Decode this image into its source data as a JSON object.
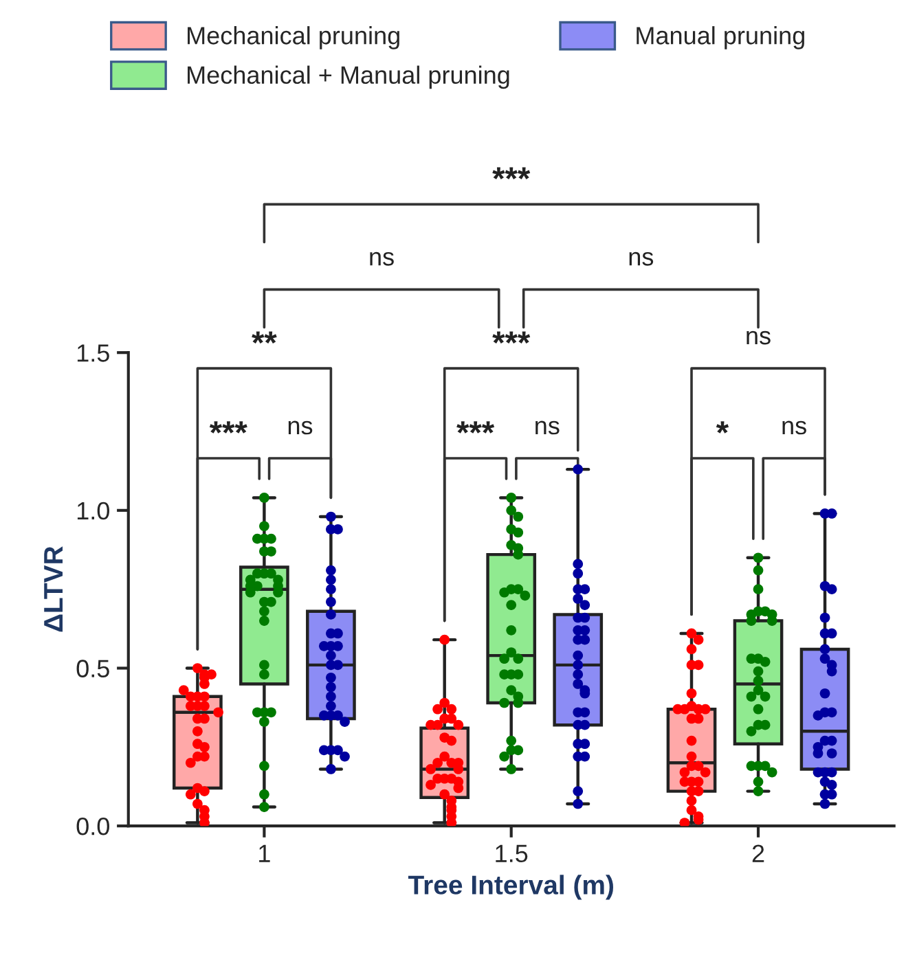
{
  "chart_data": {
    "type": "box",
    "categories": [
      "1",
      "1.5",
      "2"
    ],
    "xlabel": "Tree Interval (m)",
    "ylabel": "ΔLTVR",
    "ylim": [
      0,
      1.5
    ],
    "yticks": [
      {
        "value": 0,
        "label": "0.0"
      },
      {
        "value": 0.5,
        "label": "0.5"
      },
      {
        "value": 1,
        "label": "1.0"
      },
      {
        "value": 1.5,
        "label": "1.5"
      }
    ],
    "legend": "top",
    "marker": "circle",
    "series": [
      {
        "name": "Mechanical pruning",
        "color": "#ffa8a8",
        "boxes": [
          {
            "low": 0.01,
            "q1": 0.12,
            "median": 0.36,
            "q3": 0.41,
            "high": 0.5
          },
          {
            "low": 0.01,
            "q1": 0.09,
            "median": 0.18,
            "q3": 0.31,
            "high": 0.59
          },
          {
            "low": 0.01,
            "q1": 0.11,
            "median": 0.2,
            "q3": 0.37,
            "high": 0.61
          }
        ]
      },
      {
        "name": "Mechanical + Manual pruning",
        "color": "#90ea90",
        "boxes": [
          {
            "low": 0.06,
            "q1": 0.45,
            "median": 0.75,
            "q3": 0.82,
            "high": 1.04
          },
          {
            "low": 0.18,
            "q1": 0.39,
            "median": 0.54,
            "q3": 0.86,
            "high": 1.04
          },
          {
            "low": 0.11,
            "q1": 0.26,
            "median": 0.45,
            "q3": 0.65,
            "high": 0.85
          }
        ]
      },
      {
        "name": "Manual pruning",
        "color": "#8c8cf5",
        "boxes": [
          {
            "low": 0.18,
            "q1": 0.34,
            "median": 0.51,
            "q3": 0.68,
            "high": 0.98
          },
          {
            "low": 0.07,
            "q1": 0.32,
            "median": 0.51,
            "q3": 0.67,
            "high": 1.13
          },
          {
            "low": 0.07,
            "q1": 0.18,
            "median": 0.3,
            "q3": 0.56,
            "high": 0.99
          }
        ]
      },
      {
        "type": "scatter",
        "color": "#ff0000",
        "x": [
          "1",
          "1",
          "1",
          "1",
          "1",
          "1",
          "1",
          "1",
          "1",
          "1",
          "1",
          "1",
          "1",
          "1",
          "1",
          "1",
          "1",
          "1",
          "1",
          "1",
          "1",
          "1",
          "1",
          "1",
          "1",
          "1",
          "1",
          "1",
          "1.5",
          "1.5",
          "1.5",
          "1.5",
          "1.5",
          "1.5",
          "1.5",
          "1.5",
          "1.5",
          "1.5",
          "1.5",
          "1.5",
          "1.5",
          "1.5",
          "1.5",
          "1.5",
          "1.5",
          "1.5",
          "1.5",
          "1.5",
          "1.5",
          "1.5",
          "1.5",
          "1.5",
          "1.5",
          "1.5",
          "1.5",
          "1.5",
          "1.5",
          "2",
          "2",
          "2",
          "2",
          "2",
          "2",
          "2",
          "2",
          "2",
          "2",
          "2",
          "2",
          "2",
          "2",
          "2",
          "2",
          "2",
          "2",
          "2",
          "2",
          "2",
          "2",
          "2",
          "2",
          "2",
          "2",
          "2",
          "2",
          "2"
        ],
        "values": [
          0.5,
          0.48,
          0.47,
          0.48,
          0.41,
          0.41,
          0.41,
          0.38,
          0.38,
          0.38,
          0.34,
          0.34,
          0.26,
          0.25,
          0.22,
          0.22,
          0.2,
          0.12,
          0.11,
          0.1,
          0.07,
          0.05,
          0.03,
          0.01,
          0.36,
          0.3,
          0.45,
          0.43,
          0.59,
          0.39,
          0.37,
          0.37,
          0.34,
          0.34,
          0.32,
          0.32,
          0.32,
          0.28,
          0.27,
          0.22,
          0.2,
          0.2,
          0.2,
          0.18,
          0.18,
          0.15,
          0.15,
          0.15,
          0.14,
          0.13,
          0.1,
          0.08,
          0.06,
          0.05,
          0.03,
          0.01,
          0.12,
          0.61,
          0.59,
          0.56,
          0.51,
          0.51,
          0.42,
          0.38,
          0.37,
          0.37,
          0.37,
          0.37,
          0.34,
          0.34,
          0.27,
          0.22,
          0.19,
          0.19,
          0.17,
          0.17,
          0.14,
          0.14,
          0.14,
          0.11,
          0.11,
          0.08,
          0.05,
          0.03,
          0.02,
          0.01
        ]
      },
      {
        "type": "scatter",
        "color": "#007a00",
        "x": [
          "1",
          "1",
          "1",
          "1",
          "1",
          "1",
          "1",
          "1",
          "1",
          "1",
          "1",
          "1",
          "1",
          "1",
          "1",
          "1",
          "1",
          "1",
          "1",
          "1",
          "1",
          "1",
          "1",
          "1",
          "1",
          "1",
          "1",
          "1",
          "1",
          "1",
          "1.5",
          "1.5",
          "1.5",
          "1.5",
          "1.5",
          "1.5",
          "1.5",
          "1.5",
          "1.5",
          "1.5",
          "1.5",
          "1.5",
          "1.5",
          "1.5",
          "1.5",
          "1.5",
          "1.5",
          "1.5",
          "1.5",
          "1.5",
          "1.5",
          "1.5",
          "1.5",
          "1.5",
          "1.5",
          "1.5",
          "1.5",
          "1.5",
          "1.5",
          "2",
          "2",
          "2",
          "2",
          "2",
          "2",
          "2",
          "2",
          "2",
          "2",
          "2",
          "2",
          "2",
          "2",
          "2",
          "2",
          "2",
          "2",
          "2",
          "2",
          "2",
          "2",
          "2",
          "2",
          "2",
          "2",
          "2"
        ],
        "values": [
          1.04,
          0.95,
          0.91,
          0.91,
          0.91,
          0.87,
          0.87,
          0.8,
          0.8,
          0.8,
          0.78,
          0.78,
          0.76,
          0.76,
          0.76,
          0.74,
          0.74,
          0.71,
          0.71,
          0.68,
          0.65,
          0.51,
          0.48,
          0.36,
          0.36,
          0.36,
          0.33,
          0.19,
          0.1,
          0.06,
          1.04,
          1.0,
          0.98,
          0.94,
          0.93,
          0.89,
          0.88,
          0.86,
          0.75,
          0.75,
          0.74,
          0.73,
          0.7,
          0.62,
          0.55,
          0.53,
          0.53,
          0.48,
          0.48,
          0.48,
          0.43,
          0.41,
          0.39,
          0.39,
          0.27,
          0.24,
          0.24,
          0.22,
          0.18,
          0.85,
          0.81,
          0.75,
          0.68,
          0.68,
          0.67,
          0.67,
          0.65,
          0.65,
          0.53,
          0.52,
          0.53,
          0.49,
          0.46,
          0.43,
          0.41,
          0.41,
          0.37,
          0.32,
          0.32,
          0.3,
          0.19,
          0.19,
          0.19,
          0.17,
          0.14,
          0.11
        ]
      },
      {
        "type": "scatter",
        "color": "#00009f",
        "x": [
          "1",
          "1",
          "1",
          "1",
          "1",
          "1",
          "1",
          "1",
          "1",
          "1",
          "1",
          "1",
          "1",
          "1",
          "1",
          "1",
          "1",
          "1",
          "1",
          "1",
          "1",
          "1",
          "1",
          "1",
          "1",
          "1",
          "1",
          "1",
          "1",
          "1.5",
          "1.5",
          "1.5",
          "1.5",
          "1.5",
          "1.5",
          "1.5",
          "1.5",
          "1.5",
          "1.5",
          "1.5",
          "1.5",
          "1.5",
          "1.5",
          "1.5",
          "1.5",
          "1.5",
          "1.5",
          "1.5",
          "1.5",
          "1.5",
          "1.5",
          "1.5",
          "1.5",
          "1.5",
          "1.5",
          "1.5",
          "1.5",
          "1.5",
          "2",
          "2",
          "2",
          "2",
          "2",
          "2",
          "2",
          "2",
          "2",
          "2",
          "2",
          "2",
          "2",
          "2",
          "2",
          "2",
          "2",
          "2",
          "2",
          "2",
          "2",
          "2",
          "2",
          "2",
          "2",
          "2",
          "2",
          "2"
        ],
        "values": [
          0.98,
          0.94,
          0.94,
          0.81,
          0.78,
          0.75,
          0.71,
          0.67,
          0.61,
          0.61,
          0.57,
          0.57,
          0.57,
          0.54,
          0.51,
          0.51,
          0.47,
          0.44,
          0.41,
          0.38,
          0.35,
          0.35,
          0.35,
          0.33,
          0.24,
          0.24,
          0.24,
          0.22,
          0.18,
          1.13,
          0.83,
          0.8,
          0.75,
          0.75,
          0.72,
          0.7,
          0.66,
          0.66,
          0.62,
          0.62,
          0.59,
          0.59,
          0.54,
          0.51,
          0.48,
          0.45,
          0.43,
          0.42,
          0.36,
          0.36,
          0.32,
          0.32,
          0.26,
          0.26,
          0.22,
          0.22,
          0.11,
          0.07,
          0.99,
          0.99,
          0.76,
          0.75,
          0.66,
          0.61,
          0.61,
          0.56,
          0.53,
          0.51,
          0.49,
          0.42,
          0.36,
          0.36,
          0.35,
          0.27,
          0.27,
          0.25,
          0.23,
          0.23,
          0.17,
          0.17,
          0.17,
          0.14,
          0.13,
          0.1,
          0.1,
          0.07
        ]
      }
    ],
    "annotations": [
      "***",
      "ns",
      "ns",
      "**",
      "***",
      "ns",
      "***",
      "ns",
      "***",
      "ns",
      "*",
      "ns"
    ]
  }
}
